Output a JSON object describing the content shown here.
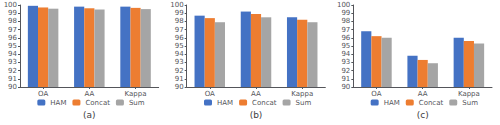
{
  "chart_data": [
    {
      "type": "bar",
      "title": "(a)",
      "categories": [
        "OA",
        "AA",
        "Kappa"
      ],
      "series": [
        {
          "name": "HAM",
          "color": "#4472C4",
          "values": [
            99.9,
            99.8,
            99.8
          ]
        },
        {
          "name": "Concat",
          "color": "#ED7D31",
          "values": [
            99.7,
            99.6,
            99.65
          ]
        },
        {
          "name": "Sum",
          "color": "#A5A5A5",
          "values": [
            99.55,
            99.45,
            99.5
          ]
        }
      ],
      "ylim": [
        90,
        100
      ],
      "yticks": [
        90,
        91,
        92,
        93,
        94,
        95,
        96,
        97,
        98,
        99,
        100
      ],
      "grid": false,
      "legend": "bottom"
    },
    {
      "type": "bar",
      "title": "(b)",
      "categories": [
        "OA",
        "AA",
        "Kappa"
      ],
      "series": [
        {
          "name": "HAM",
          "color": "#4472C4",
          "values": [
            98.7,
            99.2,
            98.5
          ]
        },
        {
          "name": "Concat",
          "color": "#ED7D31",
          "values": [
            98.4,
            98.9,
            98.2
          ]
        },
        {
          "name": "Sum",
          "color": "#A5A5A5",
          "values": [
            97.9,
            98.5,
            97.9
          ]
        }
      ],
      "ylim": [
        90,
        100
      ],
      "yticks": [
        90,
        91,
        92,
        93,
        94,
        95,
        96,
        97,
        98,
        99,
        100
      ],
      "grid": false,
      "legend": "bottom"
    },
    {
      "type": "bar",
      "title": "(c)",
      "categories": [
        "OA",
        "AA",
        "Kappa"
      ],
      "series": [
        {
          "name": "HAM",
          "color": "#4472C4",
          "values": [
            96.8,
            93.8,
            96.0
          ]
        },
        {
          "name": "Concat",
          "color": "#ED7D31",
          "values": [
            96.2,
            93.3,
            95.6
          ]
        },
        {
          "name": "Sum",
          "color": "#A5A5A5",
          "values": [
            96.0,
            92.9,
            95.3
          ]
        }
      ],
      "ylim": [
        90,
        100
      ],
      "yticks": [
        90,
        91,
        92,
        93,
        94,
        95,
        96,
        97,
        98,
        99,
        100
      ],
      "grid": false,
      "legend": "bottom"
    }
  ]
}
